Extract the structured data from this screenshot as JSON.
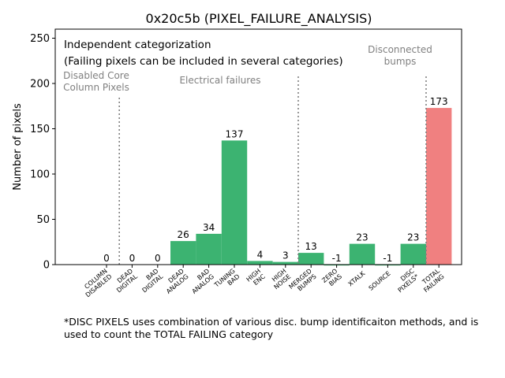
{
  "chart_data": {
    "type": "bar",
    "title": "0x20c5b (PIXEL_FAILURE_ANALYSIS)",
    "ylabel": "Number of pixels",
    "xlabel": "",
    "ylim": [
      0,
      260
    ],
    "yticks": [
      0,
      50,
      100,
      150,
      200,
      250
    ],
    "categories": [
      {
        "line1": "COLUMN",
        "line2": "DISABLED"
      },
      {
        "line1": "DEAD",
        "line2": "DIGITAL"
      },
      {
        "line1": "BAD",
        "line2": "DIGITAL"
      },
      {
        "line1": "DEAD",
        "line2": "ANALOG"
      },
      {
        "line1": "BAD",
        "line2": "ANALOG"
      },
      {
        "line1": "TUNING",
        "line2": "BAD"
      },
      {
        "line1": "HIGH",
        "line2": "ENC"
      },
      {
        "line1": "HIGH",
        "line2": "NOISE"
      },
      {
        "line1": "MERGED",
        "line2": "BUMPS"
      },
      {
        "line1": "ZERO",
        "line2": "BIAS"
      },
      {
        "line1": "XTALK",
        "line2": ""
      },
      {
        "line1": "SOURCE",
        "line2": ""
      },
      {
        "line1": "DISC",
        "line2": "PIXELS*"
      },
      {
        "line1": "TOTAL",
        "line2": "FAILING"
      }
    ],
    "values": [
      0,
      0,
      0,
      26,
      34,
      137,
      4,
      3,
      13,
      -1,
      23,
      -1,
      23,
      173
    ],
    "bar_colors": [
      "#3cb371",
      "#3cb371",
      "#3cb371",
      "#3cb371",
      "#3cb371",
      "#3cb371",
      "#3cb371",
      "#3cb371",
      "#3cb371",
      "#3cb371",
      "#3cb371",
      "#3cb371",
      "#3cb371",
      "#f08080"
    ],
    "separators_after_index": [
      0,
      7,
      12
    ],
    "annotations": {
      "heading": "Independent categorization",
      "subheading": "(Failing pixels can be included in several categories)",
      "disabled_core": [
        "Disabled Core",
        "Column Pixels"
      ],
      "electrical": "Electrical failures",
      "disconnected": [
        "Disconnected",
        "bumps"
      ]
    }
  },
  "footnote": {
    "line1": "*DISC PIXELS uses combination of various disc. bump identificaiton methods, and is",
    "line2": "used to count the TOTAL FAILING category"
  }
}
